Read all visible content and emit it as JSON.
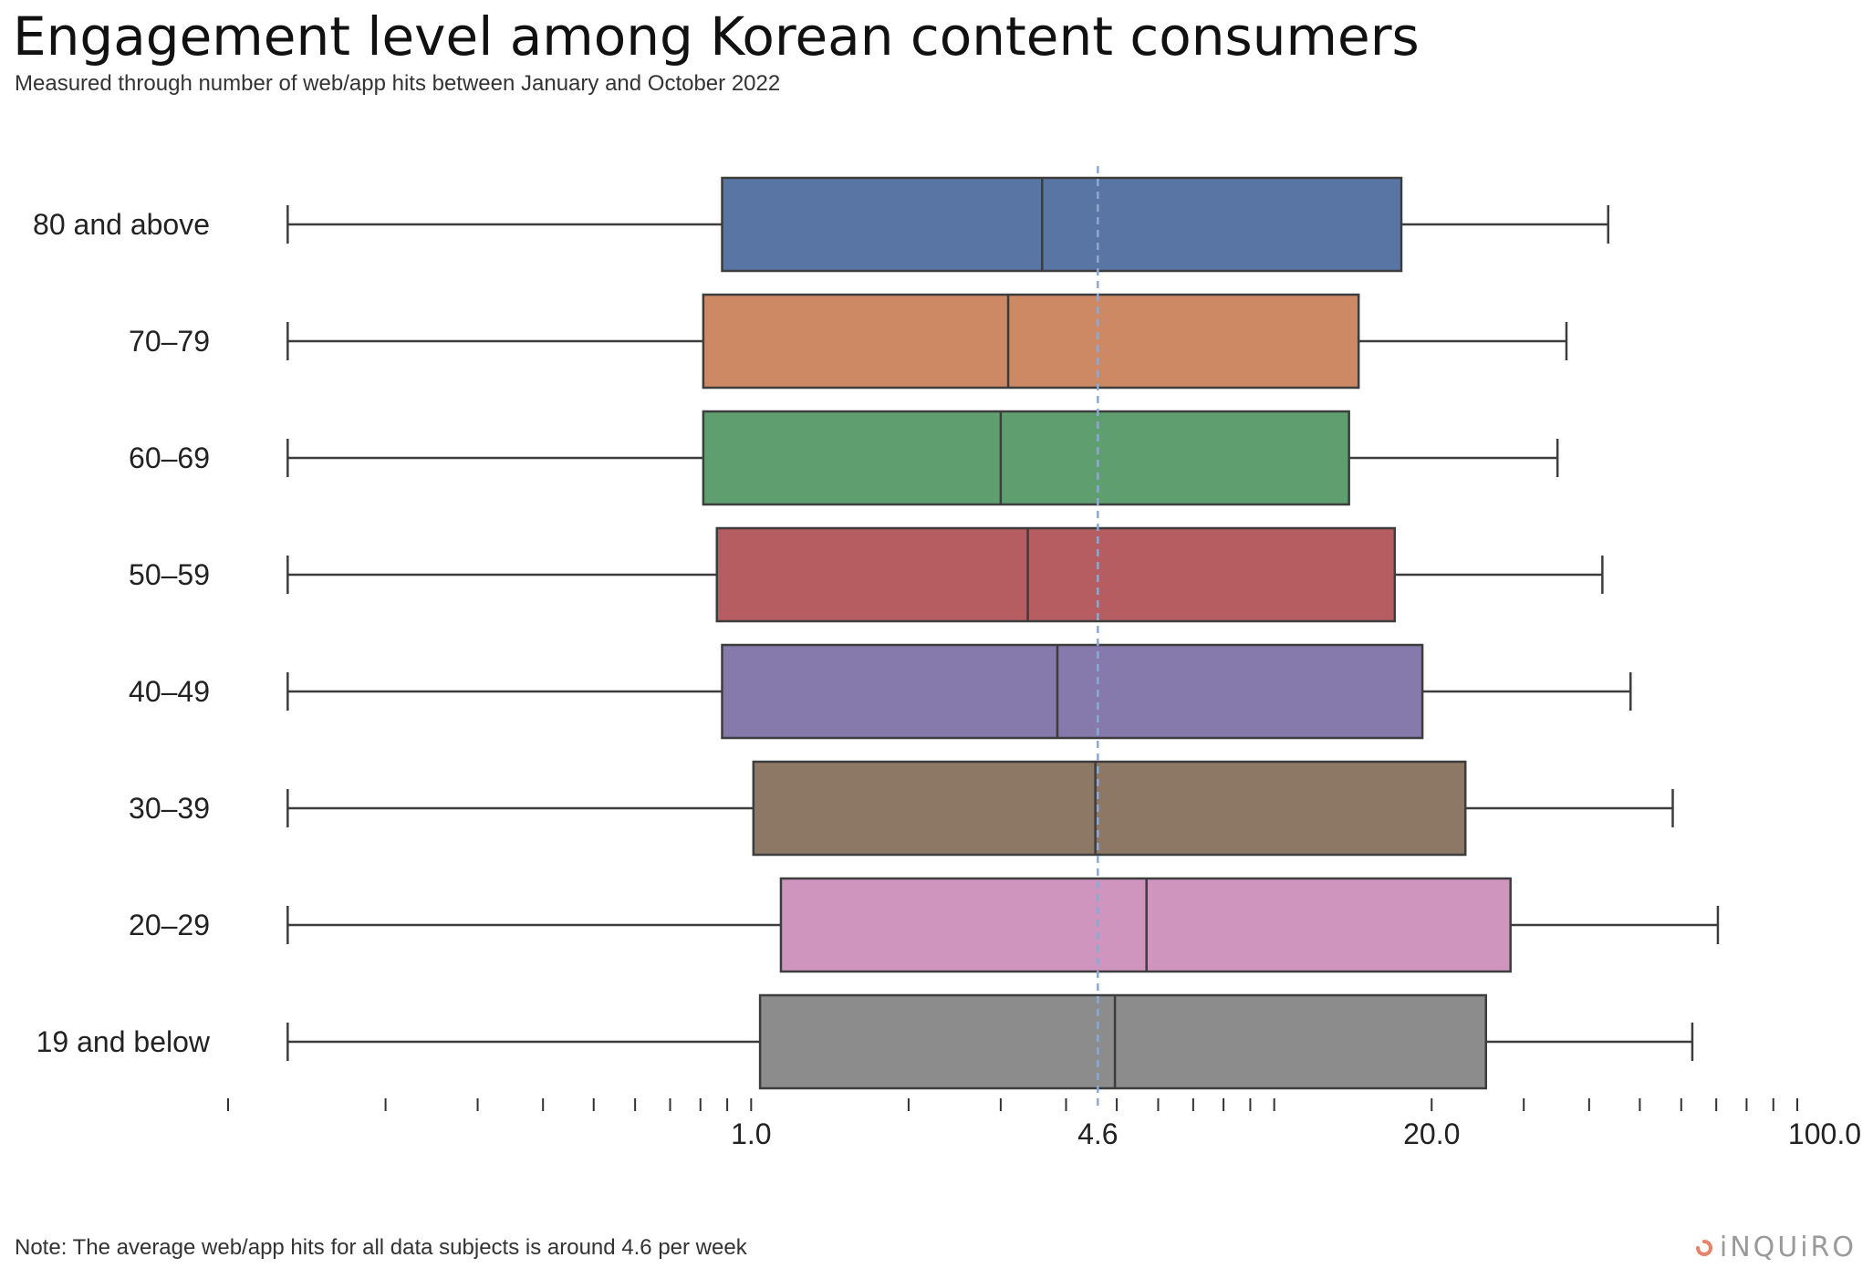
{
  "header": {
    "title": "Engagement level among Korean content consumers",
    "subtitle": "Measured through number of web/app hits between January and October 2022"
  },
  "footer": {
    "note": "Note: The average web/app hits for all data subjects is around 4.6 per week",
    "brand": "iNQUiRO",
    "brand_icon": "inquiro-logo-icon",
    "brand_color": "#e8836a"
  },
  "chart_data": {
    "type": "boxplot",
    "orientation": "horizontal",
    "x_scale": "log",
    "xlim": [
      0.1,
      100
    ],
    "x_ticks": [
      1.0,
      4.6,
      20.0,
      100.0
    ],
    "x_tick_labels": [
      "1.0",
      "4.6",
      "20.0",
      "100.0"
    ],
    "reference_line": {
      "value": 4.6,
      "style": "dashed",
      "color": "#8fa8d0"
    },
    "grid": false,
    "categories": [
      "80 and above",
      "70–79",
      "60–69",
      "50–59",
      "40–49",
      "30–39",
      "20–29",
      "19 and below"
    ],
    "series": [
      {
        "category": "80 and above",
        "whisker_low": 0.13,
        "q1": 0.88,
        "median": 3.6,
        "q3": 17.5,
        "whisker_high": 43.5,
        "color": "#5875a4"
      },
      {
        "category": "70–79",
        "whisker_low": 0.13,
        "q1": 0.81,
        "median": 3.1,
        "q3": 14.5,
        "whisker_high": 36.2,
        "color": "#cc8963"
      },
      {
        "category": "60–69",
        "whisker_low": 0.13,
        "q1": 0.81,
        "median": 3.0,
        "q3": 13.9,
        "whisker_high": 34.8,
        "color": "#5f9e6e"
      },
      {
        "category": "50–59",
        "whisker_low": 0.13,
        "q1": 0.86,
        "median": 3.38,
        "q3": 17.0,
        "whisker_high": 42.4,
        "color": "#b55d60"
      },
      {
        "category": "40–49",
        "whisker_low": 0.13,
        "q1": 0.88,
        "median": 3.85,
        "q3": 19.2,
        "whisker_high": 48.0,
        "color": "#857aab"
      },
      {
        "category": "30–39",
        "whisker_low": 0.13,
        "q1": 1.01,
        "median": 4.55,
        "q3": 23.2,
        "whisker_high": 57.8,
        "color": "#8d7866"
      },
      {
        "category": "20–29",
        "whisker_low": 0.13,
        "q1": 1.14,
        "median": 5.7,
        "q3": 28.3,
        "whisker_high": 70.5,
        "color": "#d095bf"
      },
      {
        "category": "19 and below",
        "whisker_low": 0.13,
        "q1": 1.04,
        "median": 4.96,
        "q3": 25.4,
        "whisker_high": 63.0,
        "color": "#8c8c8c"
      }
    ]
  }
}
